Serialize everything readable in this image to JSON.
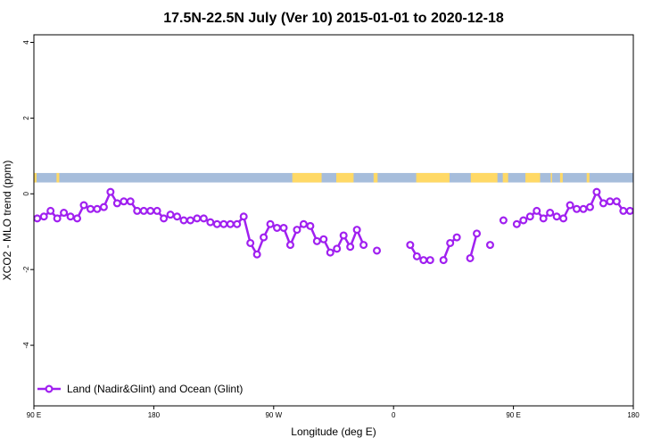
{
  "chart_data": {
    "type": "line",
    "title": "17.5N-22.5N July (Ver 10)   2015-01-01 to 2020-12-18",
    "xlabel": "Longitude (deg E)",
    "ylabel": "XCO2 - MLO trend (ppm)",
    "xlim": [
      90,
      540
    ],
    "ylim": [
      -5.6,
      4.2
    ],
    "x_ticks": [
      {
        "value": 90,
        "label": "90 E"
      },
      {
        "value": 180,
        "label": "180"
      },
      {
        "value": 270,
        "label": "90 W"
      },
      {
        "value": 360,
        "label": "0"
      },
      {
        "value": 450,
        "label": "90 E"
      },
      {
        "value": 540,
        "label": "180"
      }
    ],
    "y_ticks": [
      {
        "value": 4,
        "label": "4"
      },
      {
        "value": 2,
        "label": "2"
      },
      {
        "value": 0,
        "label": "0"
      },
      {
        "value": -2,
        "label": "-2"
      },
      {
        "value": -4,
        "label": "-4"
      }
    ],
    "legend": {
      "position": "bottom-left",
      "entries": [
        "Land (Nadir&Glint) and Ocean (Glint)"
      ]
    },
    "series_color": "#a020f0",
    "land_color": "#ffd966",
    "ocean_color": "#a6bddb",
    "land_ranges": [
      [
        90,
        92
      ],
      [
        107,
        109
      ],
      [
        284,
        306
      ],
      [
        317,
        330
      ],
      [
        345,
        348
      ],
      [
        377,
        402
      ],
      [
        418,
        438
      ],
      [
        442,
        446
      ],
      [
        459,
        470
      ],
      [
        478,
        479
      ],
      [
        485,
        487
      ],
      [
        505,
        507
      ]
    ],
    "series": [
      {
        "name": "Land (Nadir&Glint) and Ocean (Glint)",
        "segments": [
          [
            [
              92.5,
              -0.65
            ],
            [
              97.5,
              -0.6
            ],
            [
              102.5,
              -0.45
            ],
            [
              107.5,
              -0.65
            ],
            [
              112.5,
              -0.5
            ],
            [
              117.5,
              -0.6
            ],
            [
              122.5,
              -0.65
            ],
            [
              127.5,
              -0.3
            ],
            [
              132.5,
              -0.4
            ],
            [
              137.5,
              -0.4
            ],
            [
              142.5,
              -0.35
            ],
            [
              147.5,
              0.05
            ],
            [
              152.5,
              -0.25
            ],
            [
              157.5,
              -0.2
            ],
            [
              162.5,
              -0.2
            ],
            [
              167.5,
              -0.45
            ],
            [
              172.5,
              -0.45
            ],
            [
              177.5,
              -0.45
            ],
            [
              182.5,
              -0.45
            ],
            [
              187.5,
              -0.65
            ],
            [
              192.5,
              -0.55
            ],
            [
              197.5,
              -0.6
            ],
            [
              202.5,
              -0.7
            ],
            [
              207.5,
              -0.7
            ],
            [
              212.5,
              -0.65
            ],
            [
              217.5,
              -0.65
            ],
            [
              222.5,
              -0.75
            ],
            [
              227.5,
              -0.8
            ],
            [
              232.5,
              -0.8
            ],
            [
              237.5,
              -0.8
            ],
            [
              242.5,
              -0.8
            ],
            [
              247.5,
              -0.6
            ],
            [
              252.5,
              -1.3
            ],
            [
              257.5,
              -1.6
            ],
            [
              262.5,
              -1.15
            ],
            [
              267.5,
              -0.8
            ],
            [
              272.5,
              -0.9
            ],
            [
              277.5,
              -0.9
            ],
            [
              282.5,
              -1.35
            ],
            [
              287.5,
              -0.95
            ],
            [
              292.5,
              -0.8
            ],
            [
              297.5,
              -0.85
            ],
            [
              302.5,
              -1.25
            ],
            [
              307.5,
              -1.2
            ],
            [
              312.5,
              -1.55
            ],
            [
              317.5,
              -1.45
            ],
            [
              322.5,
              -1.1
            ],
            [
              327.5,
              -1.4
            ],
            [
              332.5,
              -0.95
            ],
            [
              337.5,
              -1.35
            ]
          ],
          [
            [
              347.5,
              -1.5
            ]
          ],
          [
            [
              372.5,
              -1.35
            ],
            [
              377.5,
              -1.65
            ],
            [
              382.5,
              -1.75
            ],
            [
              387.5,
              -1.75
            ]
          ],
          [
            [
              397.5,
              -1.75
            ],
            [
              402.5,
              -1.3
            ],
            [
              407.5,
              -1.15
            ]
          ],
          [
            [
              417.5,
              -1.7
            ],
            [
              422.5,
              -1.05
            ]
          ],
          [
            [
              432.5,
              -1.35
            ]
          ],
          [
            [
              442.5,
              -0.7
            ]
          ],
          [
            [
              452.5,
              -0.8
            ],
            [
              457.5,
              -0.7
            ],
            [
              462.5,
              -0.6
            ],
            [
              467.5,
              -0.45
            ],
            [
              472.5,
              -0.65
            ],
            [
              477.5,
              -0.5
            ],
            [
              482.5,
              -0.6
            ],
            [
              487.5,
              -0.65
            ],
            [
              492.5,
              -0.3
            ],
            [
              497.5,
              -0.4
            ],
            [
              502.5,
              -0.4
            ],
            [
              507.5,
              -0.35
            ],
            [
              512.5,
              0.05
            ],
            [
              517.5,
              -0.25
            ],
            [
              522.5,
              -0.2
            ],
            [
              527.5,
              -0.2
            ],
            [
              532.5,
              -0.45
            ],
            [
              537.5,
              -0.45
            ],
            [
              542.5,
              -0.45
            ]
          ]
        ]
      }
    ]
  }
}
